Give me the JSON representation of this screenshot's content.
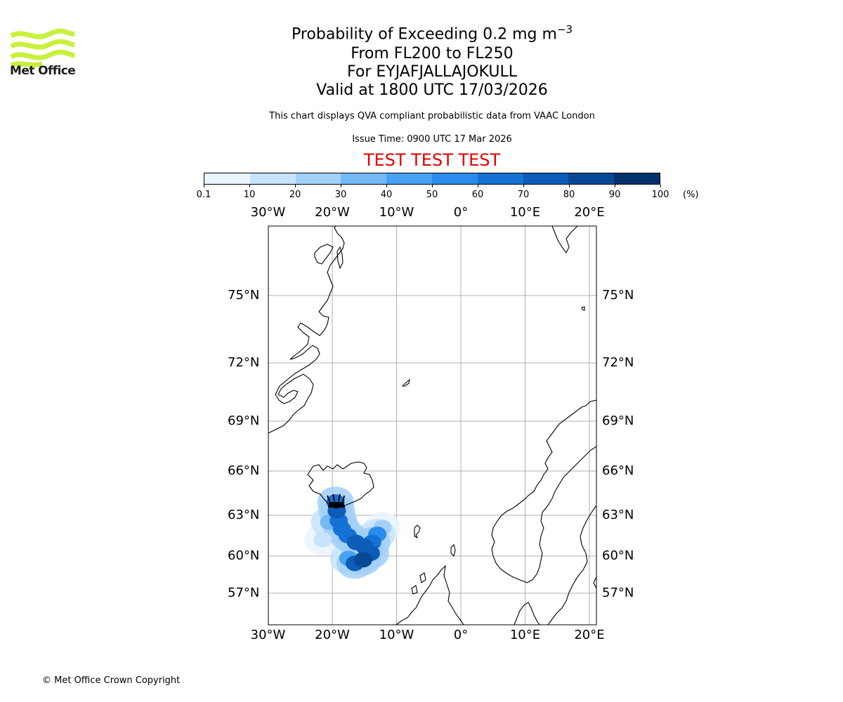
{
  "logo": {
    "name": "Met Office",
    "brand_color": "#c8f03c"
  },
  "title": {
    "line1_prefix": "Probability of Exceeding 0.2 mg m",
    "line1_superscript": "−3",
    "line2": "From FL200 to FL250",
    "line3": "For EYJAFJALLAJOKULL",
    "line4": "Valid at 1800 UTC 17/03/2026"
  },
  "note": "This chart displays QVA compliant probabilistic data from VAAC London",
  "issue_time": "Issue Time: 0900 UTC 17 Mar 2026",
  "test_banner": "TEST TEST TEST",
  "colorbar": {
    "ticks": [
      "0.1",
      "10",
      "20",
      "30",
      "40",
      "50",
      "60",
      "70",
      "80",
      "90",
      "100"
    ],
    "unit": "(%)",
    "colors": [
      "#eaf4fe",
      "#c7e3fb",
      "#a2d0f9",
      "#74b9f6",
      "#47a2f3",
      "#2a8cec",
      "#1472d6",
      "#0c5cb8",
      "#084996",
      "#05316a"
    ]
  },
  "map": {
    "lon_labels": [
      "30°W",
      "20°W",
      "10°W",
      "0°",
      "10°E",
      "20°E"
    ],
    "lat_labels": [
      "75°N",
      "72°N",
      "69°N",
      "66°N",
      "63°N",
      "60°N",
      "57°N"
    ],
    "volcano": "EYJAFJALLAJOKULL",
    "plume_cells": [
      {
        "lon": -19.5,
        "lat": 63.9,
        "p": 65
      },
      {
        "lon": -19.3,
        "lat": 63.3,
        "p": 70
      },
      {
        "lon": -19.0,
        "lat": 62.6,
        "p": 60
      },
      {
        "lon": -18.5,
        "lat": 62.0,
        "p": 60
      },
      {
        "lon": -17.6,
        "lat": 61.5,
        "p": 65
      },
      {
        "lon": -16.3,
        "lat": 61.0,
        "p": 70
      },
      {
        "lon": -15.0,
        "lat": 60.7,
        "p": 70
      },
      {
        "lon": -13.8,
        "lat": 61.0,
        "p": 65
      },
      {
        "lon": -13.0,
        "lat": 61.6,
        "p": 50
      },
      {
        "lon": -15.2,
        "lat": 59.7,
        "p": 85
      },
      {
        "lon": -16.5,
        "lat": 59.4,
        "p": 70
      },
      {
        "lon": -14.0,
        "lat": 60.2,
        "p": 75
      },
      {
        "lon": -17.5,
        "lat": 59.8,
        "p": 40
      },
      {
        "lon": -20.5,
        "lat": 62.5,
        "p": 30
      },
      {
        "lon": -21.5,
        "lat": 61.2,
        "p": 15
      },
      {
        "lon": -12.2,
        "lat": 62.1,
        "p": 25
      }
    ]
  },
  "copyright": "© Met Office Crown Copyright"
}
